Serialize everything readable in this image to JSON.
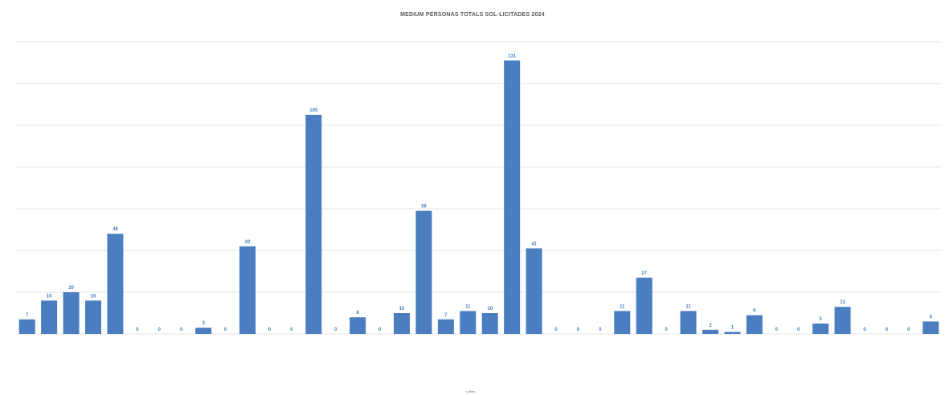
{
  "chart_data": {
    "type": "bar",
    "title": "MEDIUM PERSONAS TOTALS SOL·LICITADES 2024",
    "xlabel": "y Rev.",
    "ylabel": "",
    "ylim": [
      0,
      140
    ],
    "grid": true,
    "legend": "none",
    "bar_color": "#4a7ec0",
    "categories": [
      "",
      "",
      "",
      "",
      "",
      "",
      "",
      "",
      "",
      "",
      "",
      "",
      "",
      "",
      "",
      "",
      "",
      "",
      "",
      "",
      "",
      "",
      "",
      "",
      "",
      "",
      "",
      "",
      "",
      "",
      "",
      "",
      "",
      "",
      "",
      "",
      "",
      "",
      "",
      "",
      "",
      ""
    ],
    "values": [
      7,
      16,
      20,
      16,
      48,
      0,
      0,
      0,
      3,
      0,
      42,
      0,
      0,
      105,
      0,
      8,
      0,
      10,
      59,
      7,
      11,
      10,
      131,
      41,
      0,
      0,
      0,
      11,
      27,
      0,
      11,
      2,
      1,
      9,
      0,
      0,
      5,
      13,
      0,
      0,
      0,
      6
    ],
    "labels": [
      "7",
      "16",
      "20",
      "16",
      "48",
      "0",
      "0",
      "0",
      "3",
      "0",
      "42",
      "0",
      "0",
      "105",
      "0",
      "8",
      "0",
      "10",
      "59",
      "7",
      "11",
      "10",
      "131",
      "41",
      "0",
      "0",
      "0",
      "11",
      "27",
      "0",
      "11",
      "2",
      "1",
      "9",
      "0",
      "0",
      "5",
      "13",
      "0",
      "0",
      "0",
      "6"
    ]
  }
}
